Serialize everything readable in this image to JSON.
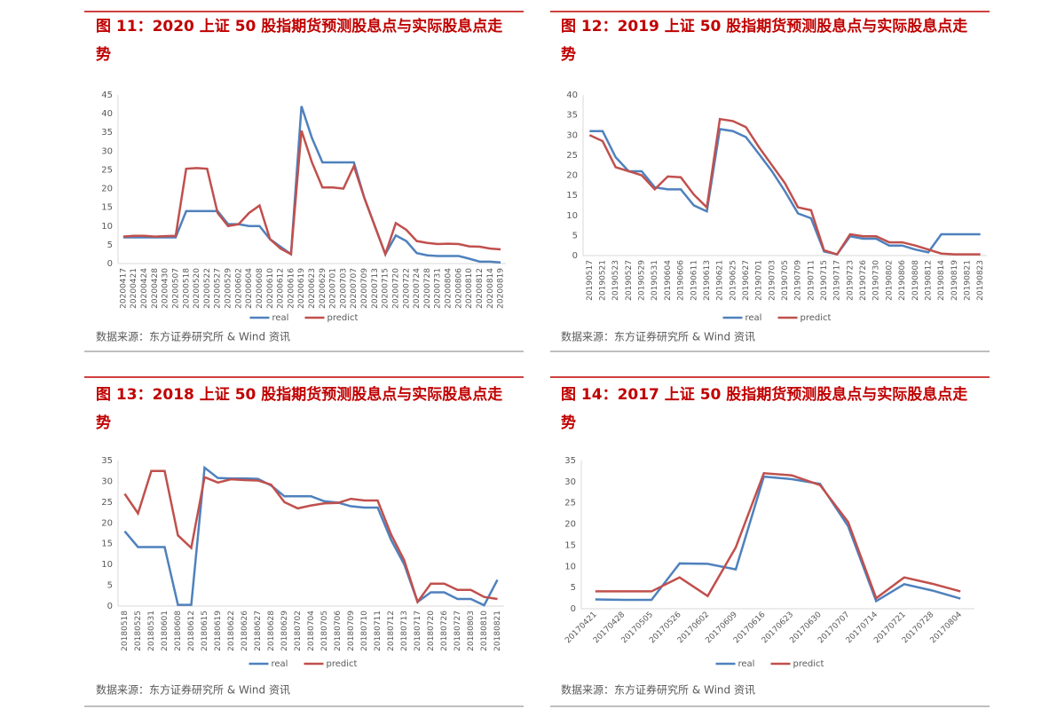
{
  "chart_data": [
    {
      "type": "line",
      "title": "图 11：2020 上证 50 股指期货预测股息点与实际股息点走势",
      "categories": [
        "20200417",
        "20200421",
        "20200424",
        "20200428",
        "20200430",
        "20200507",
        "20200518",
        "20200520",
        "20200522",
        "20200527",
        "20200529",
        "20200602",
        "20200604",
        "20200608",
        "20200610",
        "20200612",
        "20200616",
        "20200619",
        "20200623",
        "20200629",
        "20200701",
        "20200703",
        "20200707",
        "20200709",
        "20200713",
        "20200715",
        "20200720",
        "20200722",
        "20200724",
        "20200728",
        "20200731",
        "20200804",
        "20200806",
        "20200810",
        "20200812",
        "20200814",
        "20200819"
      ],
      "series": [
        {
          "name": "real",
          "color": "#4f81bd",
          "values": [
            7,
            7,
            7,
            7,
            7,
            7,
            14,
            14,
            14,
            14,
            10.5,
            10.5,
            10,
            10,
            6.5,
            4.5,
            2.5,
            42,
            33.5,
            27,
            27,
            27,
            27,
            17.5,
            10,
            2.5,
            7.5,
            6,
            2.8,
            2.2,
            2,
            2,
            2,
            1.3,
            0.5,
            0.5,
            0.3
          ]
        },
        {
          "name": "predict",
          "color": "#c0504d",
          "values": [
            7.2,
            7.4,
            7.4,
            7.2,
            7.3,
            7.4,
            25.3,
            25.5,
            25.3,
            13.5,
            10,
            10.5,
            13.5,
            15.5,
            6.5,
            4,
            2.5,
            35.5,
            27,
            20.3,
            20.3,
            20,
            26,
            17.5,
            10,
            2.5,
            10.8,
            9,
            6,
            5.5,
            5.2,
            5.3,
            5.2,
            4.6,
            4.5,
            4,
            3.8
          ]
        }
      ],
      "ylim": [
        0,
        45
      ],
      "yticks": [
        0,
        5,
        10,
        15,
        20,
        25,
        30,
        35,
        40,
        45
      ],
      "grid": false,
      "source": "数据来源：东方证券研究所 & Wind 资讯"
    },
    {
      "type": "line",
      "title": "图 12：2019 上证 50 股指期货预测股息点与实际股息点走势",
      "categories": [
        "20190517",
        "20190521",
        "20190523",
        "20190527",
        "20190529",
        "20190531",
        "20190604",
        "20190606",
        "20190611",
        "20190613",
        "20190621",
        "20190625",
        "20190627",
        "20190701",
        "20190703",
        "20190705",
        "20190709",
        "20190711",
        "20190715",
        "20190717",
        "20190723",
        "20190726",
        "20190730",
        "20190802",
        "20190806",
        "20190808",
        "20190812",
        "20190814",
        "20190819",
        "20190821",
        "20190823"
      ],
      "series": [
        {
          "name": "real",
          "color": "#4f81bd",
          "values": [
            31,
            31,
            24.5,
            21,
            21,
            17,
            16.5,
            16.5,
            12.5,
            11,
            31.5,
            31,
            29.5,
            25.3,
            21,
            16,
            10.5,
            9.3,
            1,
            0.3,
            4.8,
            4.2,
            4.2,
            2.5,
            2.5,
            1.5,
            0.8,
            5.3,
            5.3,
            5.3,
            5.3
          ]
        },
        {
          "name": "predict",
          "color": "#c0504d",
          "values": [
            30,
            28.5,
            22,
            21,
            20,
            16.5,
            19.7,
            19.5,
            15.2,
            12,
            34,
            33.5,
            32,
            27,
            22.5,
            18,
            12,
            11.3,
            1.3,
            0.3,
            5.3,
            4.8,
            4.8,
            3.3,
            3.3,
            2.5,
            1.5,
            0.5,
            0.3,
            0.3,
            0.3
          ]
        }
      ],
      "ylim": [
        0,
        40
      ],
      "yticks": [
        0,
        5,
        10,
        15,
        20,
        25,
        30,
        35,
        40
      ],
      "grid": false,
      "source": "数据来源：东方证券研究所 & Wind 资讯"
    },
    {
      "type": "line",
      "title": "图 13：2018 上证 50 股指期货预测股息点与实际股息点走势",
      "categories": [
        "20180518",
        "20180525",
        "20180531",
        "20180601",
        "20180608",
        "20180612",
        "20180615",
        "20180619",
        "20180622",
        "20180626",
        "20180627",
        "20180628",
        "20180629",
        "20180702",
        "20180704",
        "20180705",
        "20180706",
        "20180709",
        "20180710",
        "20180711",
        "20180712",
        "20180713",
        "20180717",
        "20180720",
        "20180726",
        "20180727",
        "20180803",
        "20180810",
        "20180821"
      ],
      "series": [
        {
          "name": "real",
          "color": "#4f81bd",
          "values": [
            18,
            14.2,
            14.2,
            14.2,
            0.3,
            0.3,
            33.3,
            30.8,
            30.7,
            30.7,
            30.6,
            29,
            26.4,
            26.4,
            26.4,
            25.2,
            24.9,
            24,
            23.7,
            23.7,
            16,
            10,
            1,
            3.3,
            3.3,
            1.7,
            1.7,
            0.2,
            6.3
          ]
        },
        {
          "name": "predict",
          "color": "#c0504d",
          "values": [
            27,
            22.3,
            32.5,
            32.5,
            17,
            14,
            31,
            29.7,
            30.5,
            30.3,
            30.2,
            29.2,
            25,
            23.5,
            24.2,
            24.7,
            24.8,
            25.8,
            25.4,
            25.4,
            17.3,
            11,
            1,
            5.4,
            5.4,
            3.9,
            3.9,
            2.2,
            1.7
          ]
        }
      ],
      "ylim": [
        0,
        35
      ],
      "yticks": [
        0,
        5,
        10,
        15,
        20,
        25,
        30,
        35
      ],
      "grid": false,
      "source": "数据来源：东方证券研究所 & Wind 资讯"
    },
    {
      "type": "line",
      "title": "图 14：2017 上证 50 股指期货预测股息点与实际股息点走势",
      "categories": [
        "20170421",
        "20170428",
        "20170505",
        "20170526",
        "20170602",
        "20170609",
        "20170616",
        "20170623",
        "20170630",
        "20170707",
        "20170714",
        "20170721",
        "20170728",
        "20170804"
      ],
      "series": [
        {
          "name": "real",
          "color": "#4f81bd",
          "values": [
            2.2,
            2.1,
            2.1,
            10.7,
            10.6,
            9.3,
            31.2,
            30.6,
            29.5,
            19.5,
            1.8,
            5.8,
            4.3,
            2.4
          ]
        },
        {
          "name": "predict",
          "color": "#c0504d",
          "values": [
            4.1,
            4.1,
            4.1,
            7.4,
            3,
            14.5,
            32,
            31.5,
            29.2,
            20.5,
            2.5,
            7.4,
            5.9,
            4.1
          ]
        }
      ],
      "ylim": [
        0,
        35
      ],
      "yticks": [
        0,
        5,
        10,
        15,
        20,
        25,
        30,
        35
      ],
      "grid": false,
      "source": "数据来源：东方证券研究所 & Wind 资讯"
    }
  ]
}
